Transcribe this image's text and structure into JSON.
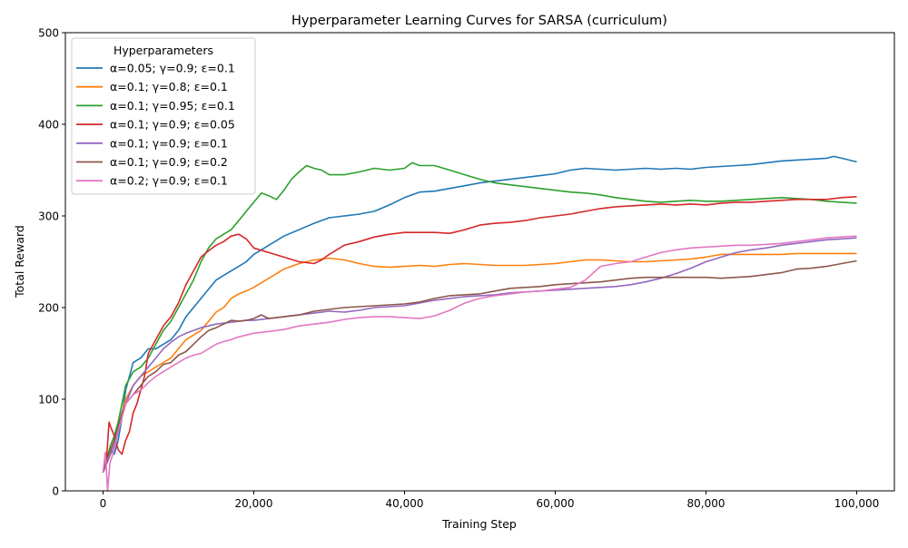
{
  "chart_data": {
    "type": "line",
    "title": "Hyperparameter Learning Curves for SARSA (curriculum)",
    "xlabel": "Training Step",
    "ylabel": "Total Reward",
    "xlim": [
      -5000,
      105000
    ],
    "ylim": [
      0,
      500
    ],
    "xticks": [
      0,
      20000,
      40000,
      60000,
      80000,
      100000
    ],
    "xtick_labels": [
      "0",
      "20,000",
      "40,000",
      "60,000",
      "80,000",
      "100,000"
    ],
    "yticks": [
      0,
      100,
      200,
      300,
      400,
      500
    ],
    "ytick_labels": [
      "0",
      "100",
      "200",
      "300",
      "400",
      "500"
    ],
    "grid": false,
    "legend": {
      "title": "Hyperparameters",
      "placement": "top-left"
    },
    "series": [
      {
        "name": "α=0.05; γ=0.9; ε=0.1",
        "color": "#1f77b4",
        "x": [
          0,
          500,
          1000,
          1500,
          2000,
          2500,
          3000,
          4000,
          5000,
          6000,
          7000,
          8000,
          9000,
          10000,
          11000,
          12000,
          13000,
          14000,
          15000,
          16000,
          17000,
          18000,
          19000,
          20000,
          22000,
          24000,
          26000,
          28000,
          30000,
          32000,
          34000,
          36000,
          38000,
          40000,
          42000,
          44000,
          46000,
          48000,
          50000,
          52000,
          54000,
          56000,
          58000,
          60000,
          62000,
          64000,
          66000,
          68000,
          70000,
          72000,
          74000,
          76000,
          78000,
          80000,
          82000,
          84000,
          86000,
          88000,
          90000,
          92000,
          94000,
          96000,
          97000,
          98000,
          100000
        ],
        "y": [
          20,
          35,
          45,
          40,
          55,
          80,
          110,
          140,
          145,
          155,
          155,
          160,
          165,
          175,
          190,
          200,
          210,
          220,
          230,
          235,
          240,
          245,
          250,
          258,
          268,
          278,
          285,
          292,
          298,
          300,
          302,
          305,
          312,
          320,
          326,
          327,
          330,
          333,
          336,
          338,
          340,
          342,
          344,
          346,
          350,
          352,
          351,
          350,
          351,
          352,
          351,
          352,
          351,
          353,
          354,
          355,
          356,
          358,
          360,
          361,
          362,
          363,
          365,
          363,
          359
        ]
      },
      {
        "name": "α=0.1; γ=0.8; ε=0.1",
        "color": "#ff7f0e",
        "x": [
          0,
          500,
          1000,
          1500,
          2000,
          2500,
          3000,
          4000,
          5000,
          6000,
          7000,
          8000,
          9000,
          10000,
          11000,
          12000,
          13000,
          14000,
          15000,
          16000,
          17000,
          18000,
          19000,
          20000,
          22000,
          24000,
          26000,
          28000,
          30000,
          32000,
          34000,
          36000,
          38000,
          40000,
          42000,
          44000,
          46000,
          48000,
          50000,
          52000,
          54000,
          56000,
          58000,
          60000,
          62000,
          64000,
          66000,
          68000,
          70000,
          72000,
          74000,
          76000,
          78000,
          80000,
          82000,
          84000,
          86000,
          88000,
          90000,
          92000,
          94000,
          96000,
          98000,
          100000
        ],
        "y": [
          20,
          30,
          45,
          55,
          70,
          85,
          100,
          115,
          125,
          130,
          135,
          140,
          145,
          155,
          165,
          170,
          175,
          185,
          195,
          200,
          210,
          215,
          218,
          222,
          232,
          242,
          248,
          252,
          254,
          252,
          248,
          245,
          244,
          245,
          246,
          245,
          247,
          248,
          247,
          246,
          246,
          246,
          247,
          248,
          250,
          252,
          252,
          251,
          250,
          250,
          251,
          252,
          253,
          255,
          258,
          258,
          258,
          258,
          258,
          259,
          259,
          259,
          259,
          259
        ]
      },
      {
        "name": "α=0.1; γ=0.95; ε=0.1",
        "color": "#2ca02c",
        "x": [
          0,
          500,
          1000,
          1500,
          2000,
          2500,
          3000,
          4000,
          5000,
          6000,
          7000,
          8000,
          9000,
          10000,
          11000,
          12000,
          13000,
          14000,
          15000,
          16000,
          17000,
          18000,
          19000,
          20000,
          21000,
          22000,
          23000,
          24000,
          25000,
          26000,
          27000,
          28000,
          29000,
          30000,
          32000,
          34000,
          36000,
          38000,
          40000,
          41000,
          42000,
          44000,
          46000,
          48000,
          50000,
          52000,
          54000,
          56000,
          58000,
          60000,
          62000,
          64000,
          66000,
          68000,
          70000,
          72000,
          74000,
          76000,
          78000,
          80000,
          82000,
          84000,
          86000,
          88000,
          90000,
          92000,
          94000,
          96000,
          98000,
          100000
        ],
        "y": [
          20,
          35,
          50,
          60,
          75,
          95,
          115,
          130,
          135,
          145,
          160,
          175,
          185,
          200,
          215,
          230,
          250,
          265,
          275,
          280,
          285,
          295,
          305,
          315,
          325,
          322,
          318,
          328,
          340,
          348,
          355,
          352,
          350,
          345,
          345,
          348,
          352,
          350,
          352,
          358,
          355,
          355,
          350,
          345,
          340,
          336,
          334,
          332,
          330,
          328,
          326,
          325,
          323,
          320,
          318,
          316,
          315,
          316,
          317,
          316,
          316,
          317,
          318,
          319,
          320,
          319,
          318,
          316,
          315,
          314
        ]
      },
      {
        "name": "α=0.1; γ=0.9; ε=0.05",
        "color": "#d62728",
        "x": [
          0,
          500,
          800,
          1000,
          1500,
          2000,
          2500,
          3000,
          3500,
          4000,
          4500,
          5000,
          5500,
          6000,
          7000,
          8000,
          9000,
          10000,
          11000,
          12000,
          13000,
          14000,
          15000,
          16000,
          17000,
          18000,
          19000,
          20000,
          22000,
          24000,
          26000,
          28000,
          29000,
          30000,
          32000,
          34000,
          36000,
          38000,
          40000,
          42000,
          44000,
          46000,
          48000,
          50000,
          52000,
          54000,
          56000,
          58000,
          60000,
          62000,
          64000,
          66000,
          68000,
          70000,
          72000,
          74000,
          76000,
          78000,
          80000,
          82000,
          84000,
          86000,
          88000,
          90000,
          92000,
          94000,
          96000,
          98000,
          100000
        ],
        "y": [
          20,
          40,
          75,
          70,
          60,
          45,
          40,
          55,
          65,
          85,
          95,
          110,
          125,
          150,
          165,
          180,
          190,
          205,
          225,
          240,
          255,
          262,
          268,
          272,
          278,
          280,
          275,
          265,
          260,
          255,
          250,
          248,
          252,
          258,
          268,
          272,
          277,
          280,
          282,
          282,
          282,
          281,
          285,
          290,
          292,
          293,
          295,
          298,
          300,
          302,
          305,
          308,
          310,
          311,
          312,
          313,
          312,
          313,
          312,
          314,
          315,
          315,
          316,
          317,
          318,
          318,
          318,
          320,
          321
        ]
      },
      {
        "name": "α=0.1; γ=0.9; ε=0.1",
        "color": "#9467bd",
        "x": [
          0,
          500,
          1000,
          1500,
          2000,
          2500,
          3000,
          4000,
          5000,
          6000,
          7000,
          8000,
          9000,
          10000,
          11000,
          12000,
          13000,
          14000,
          15000,
          16000,
          17000,
          18000,
          19000,
          20000,
          22000,
          24000,
          26000,
          28000,
          30000,
          32000,
          34000,
          36000,
          38000,
          40000,
          42000,
          44000,
          46000,
          48000,
          50000,
          52000,
          54000,
          56000,
          58000,
          60000,
          62000,
          64000,
          66000,
          68000,
          70000,
          72000,
          74000,
          76000,
          78000,
          80000,
          82000,
          84000,
          86000,
          88000,
          90000,
          92000,
          94000,
          96000,
          98000,
          100000
        ],
        "y": [
          20,
          30,
          40,
          50,
          65,
          80,
          95,
          115,
          125,
          135,
          145,
          155,
          162,
          168,
          172,
          175,
          178,
          180,
          182,
          183,
          184,
          185,
          186,
          186,
          188,
          190,
          192,
          194,
          196,
          195,
          197,
          200,
          201,
          202,
          205,
          208,
          210,
          212,
          213,
          214,
          216,
          217,
          218,
          219,
          220,
          221,
          222,
          223,
          225,
          228,
          232,
          237,
          243,
          250,
          255,
          260,
          263,
          265,
          268,
          270,
          272,
          274,
          275,
          276
        ]
      },
      {
        "name": "α=0.1; γ=0.9; ε=0.2",
        "color": "#8c564b",
        "x": [
          0,
          500,
          1000,
          1500,
          2000,
          2500,
          3000,
          4000,
          5000,
          6000,
          7000,
          8000,
          9000,
          10000,
          11000,
          12000,
          13000,
          14000,
          15000,
          16000,
          17000,
          18000,
          19000,
          20000,
          21000,
          22000,
          24000,
          26000,
          28000,
          30000,
          32000,
          34000,
          36000,
          38000,
          40000,
          42000,
          44000,
          46000,
          48000,
          50000,
          52000,
          54000,
          56000,
          58000,
          60000,
          62000,
          64000,
          66000,
          68000,
          70000,
          72000,
          74000,
          76000,
          78000,
          80000,
          82000,
          84000,
          86000,
          88000,
          90000,
          92000,
          94000,
          96000,
          98000,
          100000
        ],
        "y": [
          20,
          35,
          45,
          55,
          70,
          85,
          95,
          105,
          115,
          125,
          130,
          138,
          140,
          148,
          152,
          160,
          168,
          175,
          178,
          182,
          186,
          185,
          186,
          188,
          192,
          188,
          190,
          192,
          196,
          198,
          200,
          201,
          202,
          203,
          204,
          206,
          210,
          213,
          214,
          215,
          218,
          221,
          222,
          223,
          225,
          226,
          227,
          228,
          230,
          232,
          233,
          233,
          233,
          233,
          233,
          232,
          233,
          234,
          236,
          238,
          242,
          243,
          245,
          248,
          251
        ]
      },
      {
        "name": "α=0.2; γ=0.9; ε=0.1",
        "color": "#e377c2",
        "x": [
          0,
          300,
          600,
          900,
          1500,
          2000,
          2500,
          3000,
          4000,
          5000,
          6000,
          7000,
          8000,
          9000,
          10000,
          11000,
          12000,
          13000,
          14000,
          15000,
          16000,
          17000,
          18000,
          19000,
          20000,
          22000,
          24000,
          26000,
          28000,
          30000,
          32000,
          34000,
          36000,
          38000,
          40000,
          42000,
          44000,
          46000,
          48000,
          50000,
          52000,
          54000,
          56000,
          58000,
          60000,
          62000,
          64000,
          66000,
          68000,
          70000,
          72000,
          74000,
          76000,
          78000,
          80000,
          82000,
          84000,
          86000,
          88000,
          90000,
          92000,
          94000,
          96000,
          98000,
          100000
        ],
        "y": [
          20,
          42,
          0,
          30,
          45,
          65,
          80,
          95,
          105,
          110,
          118,
          125,
          130,
          135,
          140,
          145,
          148,
          150,
          155,
          160,
          163,
          165,
          168,
          170,
          172,
          174,
          176,
          180,
          182,
          184,
          187,
          189,
          190,
          190,
          189,
          188,
          191,
          197,
          205,
          210,
          213,
          215,
          217,
          218,
          220,
          222,
          230,
          245,
          248,
          250,
          255,
          260,
          263,
          265,
          266,
          267,
          268,
          268,
          269,
          270,
          272,
          274,
          276,
          277,
          278
        ]
      }
    ]
  }
}
